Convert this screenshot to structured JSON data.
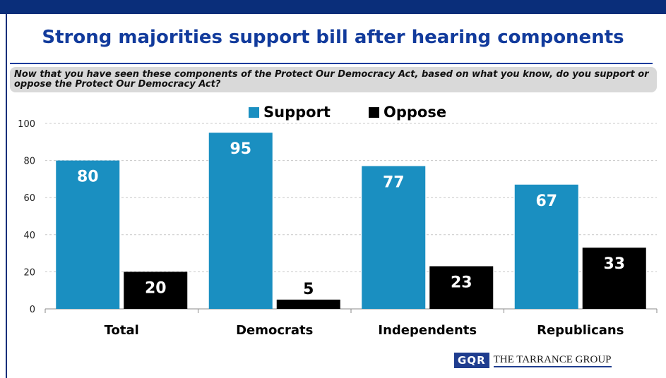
{
  "header": {
    "title": "Strong majorities support bill after hearing components",
    "question": "Now that you have seen these components of the Protect Our Democracy Act, based on what you know, do you support or oppose the Protect Our Democracy Act?"
  },
  "logo": {
    "mark": "GQR",
    "text": "THE TARRANCE GROUP"
  },
  "chart_data": {
    "type": "bar",
    "categories": [
      "Total",
      "Democrats",
      "Independents",
      "Republicans"
    ],
    "series": [
      {
        "name": "Support",
        "values": [
          80,
          95,
          77,
          67
        ],
        "color": "#1a8fc1"
      },
      {
        "name": "Oppose",
        "values": [
          20,
          5,
          23,
          33
        ],
        "color": "#000000"
      }
    ],
    "yticks": [
      0,
      20,
      40,
      60,
      80,
      100
    ],
    "ylim": [
      0,
      100
    ],
    "grid": true,
    "legend": "top-center",
    "data_labels": true
  }
}
